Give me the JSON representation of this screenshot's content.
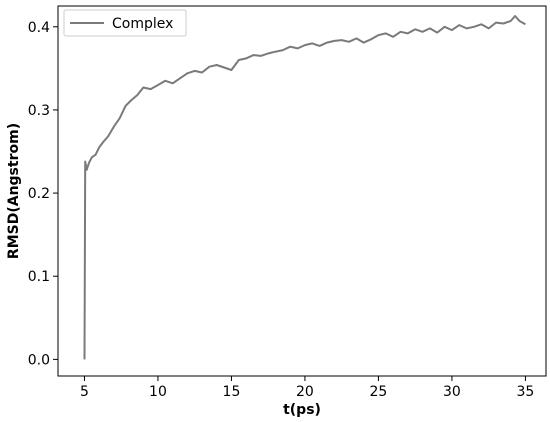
{
  "chart_data": {
    "type": "line",
    "title": "",
    "xlabel": "t(ps)",
    "ylabel": "RMSD(Angstrom)",
    "xlim": [
      3.2,
      36.4
    ],
    "ylim": [
      -0.02,
      0.425
    ],
    "x_ticks": [
      5,
      10,
      15,
      20,
      25,
      30,
      35
    ],
    "x_tick_labels": [
      "5",
      "10",
      "15",
      "20",
      "25",
      "30",
      "35"
    ],
    "y_ticks": [
      0.0,
      0.1,
      0.2,
      0.3,
      0.4
    ],
    "y_tick_labels": [
      "0.0",
      "0.1",
      "0.2",
      "0.3",
      "0.4"
    ],
    "grid": false,
    "legend": {
      "position": "top-left"
    },
    "series": [
      {
        "name": "Complex",
        "color": "#7a7a7a",
        "x": [
          5.0,
          5.05,
          5.15,
          5.3,
          5.5,
          5.75,
          6.0,
          6.3,
          6.6,
          7.0,
          7.4,
          7.8,
          8.2,
          8.6,
          9.0,
          9.5,
          10.0,
          10.5,
          11.0,
          11.5,
          12.0,
          12.5,
          13.0,
          13.5,
          14.0,
          14.5,
          15.0,
          15.5,
          16.0,
          16.5,
          17.0,
          17.5,
          18.0,
          18.5,
          19.0,
          19.5,
          20.0,
          20.5,
          21.0,
          21.5,
          22.0,
          22.5,
          23.0,
          23.5,
          24.0,
          24.5,
          25.0,
          25.5,
          26.0,
          26.5,
          27.0,
          27.5,
          28.0,
          28.5,
          29.0,
          29.5,
          30.0,
          30.5,
          31.0,
          31.5,
          32.0,
          32.5,
          33.0,
          33.5,
          34.0,
          34.3,
          34.6,
          35.0
        ],
        "y": [
          0.0,
          0.238,
          0.228,
          0.236,
          0.243,
          0.246,
          0.255,
          0.262,
          0.268,
          0.28,
          0.29,
          0.305,
          0.312,
          0.318,
          0.327,
          0.325,
          0.33,
          0.335,
          0.332,
          0.338,
          0.344,
          0.347,
          0.345,
          0.352,
          0.354,
          0.351,
          0.348,
          0.36,
          0.362,
          0.366,
          0.365,
          0.368,
          0.37,
          0.372,
          0.376,
          0.374,
          0.378,
          0.38,
          0.377,
          0.381,
          0.383,
          0.384,
          0.382,
          0.386,
          0.381,
          0.385,
          0.39,
          0.392,
          0.388,
          0.394,
          0.392,
          0.397,
          0.394,
          0.398,
          0.393,
          0.4,
          0.396,
          0.402,
          0.398,
          0.4,
          0.403,
          0.398,
          0.405,
          0.404,
          0.407,
          0.413,
          0.407,
          0.403
        ]
      }
    ]
  }
}
